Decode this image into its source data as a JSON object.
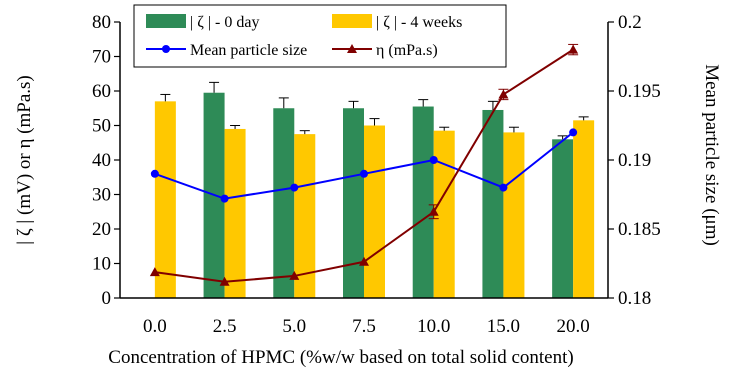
{
  "chart_data": {
    "type": "bar",
    "xlabel": "Concentration of HPMC (%w/w based on total solid content)",
    "ylabel_left": "| ζ | (mV) or η (mPa.s)",
    "ylabel_right": "Mean particle size (μm)",
    "categories": [
      "0.0",
      "2.5",
      "5.0",
      "7.5",
      "10.0",
      "15.0",
      "20.0"
    ],
    "ylim_left": [
      0,
      80
    ],
    "ylim_right": [
      0.18,
      0.2
    ],
    "yticks_left": [
      "0",
      "10",
      "20",
      "30",
      "40",
      "50",
      "60",
      "70",
      "80"
    ],
    "yticks_right": [
      "0.18",
      "0.185",
      "0.19",
      "0.195",
      "0.2"
    ],
    "grid": false,
    "legend_position": "top",
    "series": [
      {
        "name": "| ζ | - 0 day",
        "kind": "bar",
        "axis": "left",
        "color": "#2e8b57",
        "values": [
          null,
          59.5,
          55,
          55,
          55.5,
          54.5,
          46
        ],
        "errors": [
          null,
          3,
          3,
          2,
          2,
          2.5,
          1
        ]
      },
      {
        "name": "| ζ | - 4 weeks",
        "kind": "bar",
        "axis": "left",
        "color": "#ffc800",
        "values": [
          57,
          49,
          47.5,
          50,
          48.5,
          48,
          51.5
        ],
        "errors": [
          2,
          1,
          1,
          2,
          1,
          1.5,
          1
        ]
      },
      {
        "name": "Mean particle size",
        "kind": "line",
        "axis": "right",
        "color": "#0000ff",
        "marker": "circle",
        "values": [
          0.189,
          0.1872,
          0.188,
          0.189,
          0.19,
          0.188,
          0.192
        ]
      },
      {
        "name": "η (mPa.s)",
        "kind": "line",
        "axis": "left",
        "color": "#800000",
        "marker": "triangle",
        "values": [
          7.5,
          4.7,
          6.4,
          10.5,
          25,
          59,
          72
        ],
        "errors": [
          null,
          null,
          null,
          null,
          2,
          1.5,
          1.5
        ]
      }
    ]
  }
}
